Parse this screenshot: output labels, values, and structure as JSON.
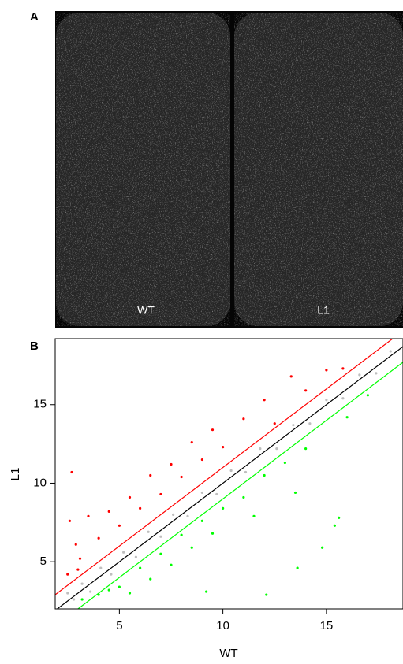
{
  "panel_labels": [
    "A",
    "B"
  ],
  "images": [
    {
      "label": "WT"
    },
    {
      "label": "L1"
    }
  ],
  "chart_data": {
    "type": "scatter",
    "xlabel": "WT",
    "ylabel": "L1",
    "xlim": [
      1.9,
      18.7
    ],
    "ylim": [
      2,
      19.2
    ],
    "xticks": [
      5,
      10,
      15
    ],
    "yticks": [
      5,
      10,
      15
    ],
    "series": [
      {
        "color": "#bebebe",
        "x": [
          2.5,
          2.8,
          3.2,
          3.6,
          4.1,
          4.6,
          5.2,
          5.8,
          6.4,
          7.0,
          7.6,
          8.3,
          9.0,
          9.7,
          10.4,
          11.1,
          11.8,
          12.6,
          13.4,
          14.2,
          15.0,
          15.8,
          16.6,
          17.4,
          18.1
        ],
        "values": [
          3.0,
          2.6,
          3.6,
          3.1,
          4.6,
          4.2,
          5.6,
          5.3,
          6.9,
          6.6,
          8.0,
          7.9,
          9.4,
          9.3,
          10.8,
          10.7,
          12.2,
          12.2,
          13.7,
          13.8,
          15.3,
          15.4,
          16.9,
          17.0,
          18.4
        ]
      },
      {
        "color": "#ff0000",
        "x": [
          2.5,
          2.6,
          2.7,
          2.9,
          3.0,
          3.1,
          3.5,
          4.0,
          4.5,
          5.0,
          5.5,
          6.0,
          6.5,
          7.0,
          7.5,
          8.0,
          8.5,
          9.0,
          9.5,
          10.0,
          11.0,
          12.0,
          12.5,
          13.3,
          14.0,
          15.0,
          15.8
        ],
        "values": [
          4.2,
          7.6,
          10.7,
          6.1,
          4.5,
          5.2,
          7.9,
          6.5,
          8.2,
          7.3,
          9.1,
          8.4,
          10.5,
          9.3,
          11.2,
          10.4,
          12.6,
          11.5,
          13.4,
          12.3,
          14.1,
          15.3,
          13.8,
          16.8,
          15.9,
          17.2,
          17.3
        ]
      },
      {
        "color": "#00ff00",
        "x": [
          3.2,
          4.0,
          4.5,
          5.0,
          5.5,
          6.0,
          6.5,
          7.0,
          7.5,
          8.0,
          8.5,
          9.0,
          9.2,
          9.5,
          10.0,
          11.0,
          11.5,
          12.0,
          12.1,
          13.0,
          13.5,
          13.6,
          14.0,
          14.8,
          15.4,
          15.6,
          16.0,
          17.0
        ],
        "values": [
          2.6,
          2.9,
          3.2,
          3.4,
          3.0,
          4.6,
          3.9,
          5.5,
          4.8,
          6.7,
          5.9,
          7.6,
          3.1,
          6.8,
          8.4,
          9.1,
          7.9,
          10.5,
          2.9,
          11.3,
          9.4,
          4.6,
          12.2,
          5.9,
          7.3,
          7.8,
          14.2,
          15.6
        ]
      }
    ],
    "lines": [
      {
        "color": "#ff0000",
        "x": [
          1.9,
          18.2
        ],
        "values": [
          2.9,
          19.2
        ]
      },
      {
        "color": "#000000",
        "x": [
          1.9,
          18.7
        ],
        "values": [
          1.9,
          18.7
        ]
      },
      {
        "color": "#00ff00",
        "x": [
          3.0,
          18.7
        ],
        "values": [
          2.0,
          17.7
        ]
      }
    ]
  }
}
